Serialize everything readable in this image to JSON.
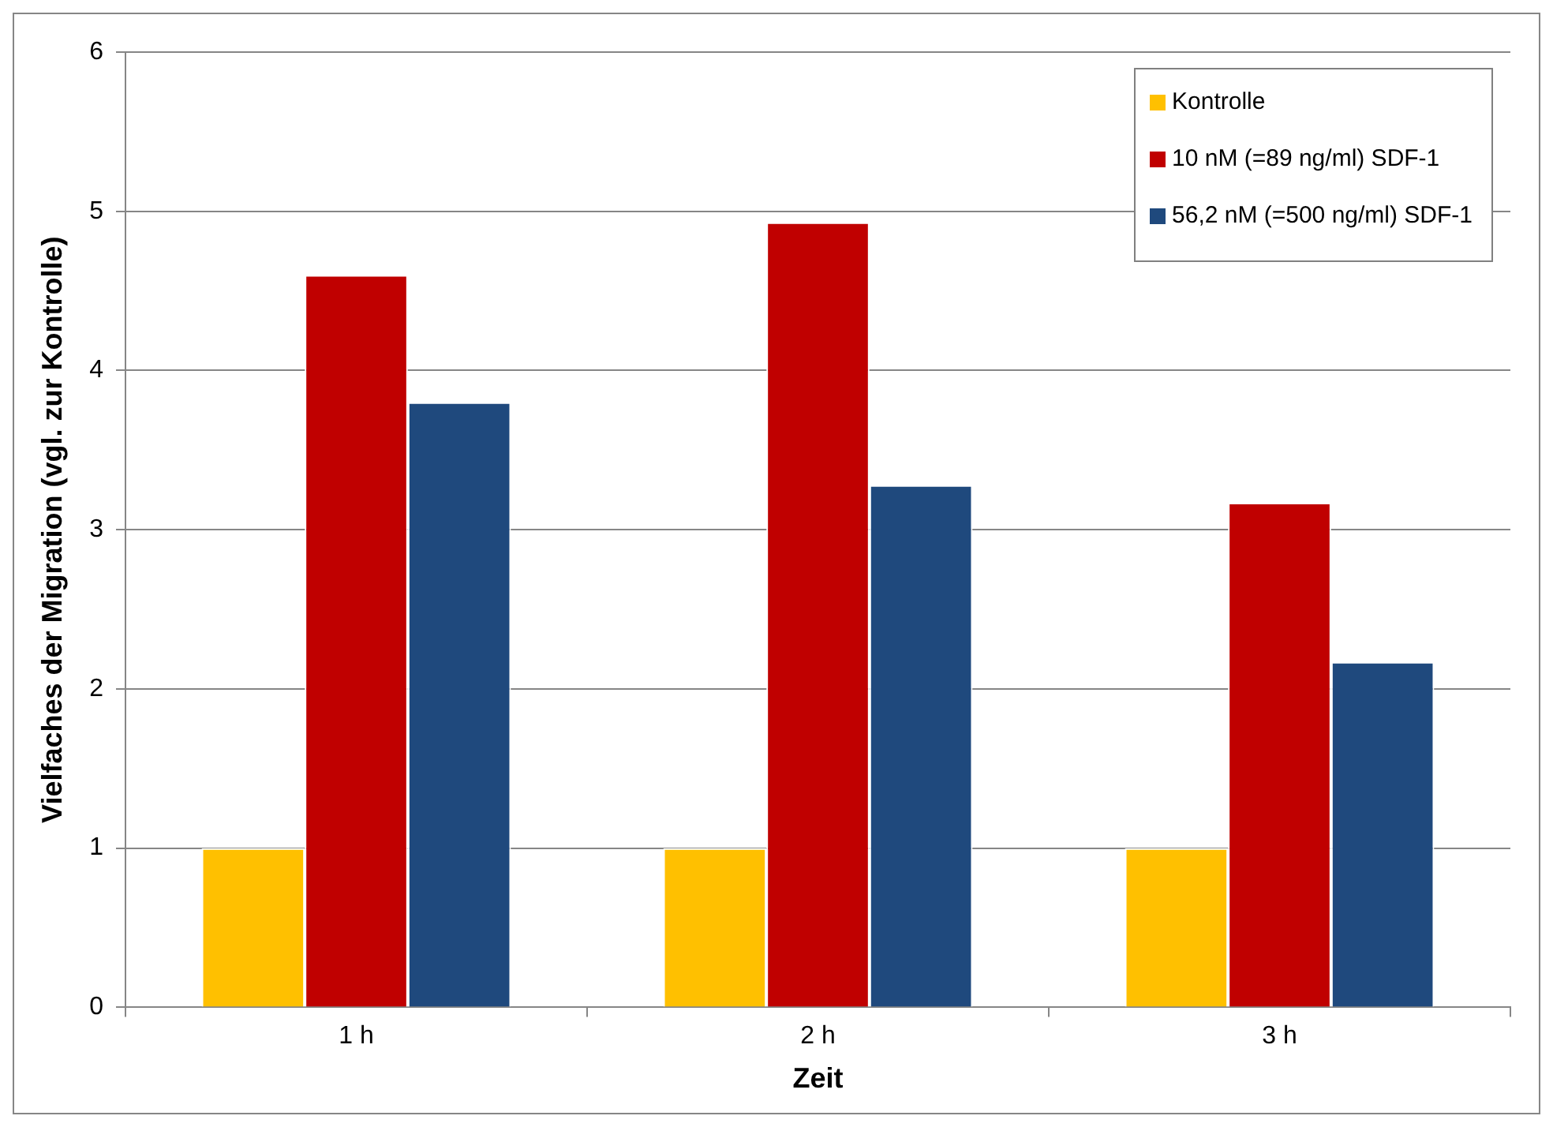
{
  "chart_data": {
    "type": "bar",
    "xlabel": "Zeit",
    "ylabel": "Vielfaches der Migration (vgl. zur Kontrolle)",
    "categories": [
      "1 h",
      "2 h",
      "3 h"
    ],
    "series": [
      {
        "name": "Kontrolle",
        "color": "#ffc000",
        "values": [
          1,
          1,
          1
        ]
      },
      {
        "name": "10 nM (=89 ng/ml) SDF-1",
        "color": "#c00000",
        "values": [
          4.6,
          4.93,
          3.17
        ]
      },
      {
        "name": "56,2 nM (=500 ng/ml) SDF-1",
        "color": "#1f497d",
        "values": [
          3.8,
          3.28,
          2.17
        ]
      }
    ],
    "ylim": [
      0,
      6
    ],
    "yticks": [
      0,
      1,
      2,
      3,
      4,
      5,
      6
    ],
    "grid": "y",
    "legend": "top right"
  }
}
